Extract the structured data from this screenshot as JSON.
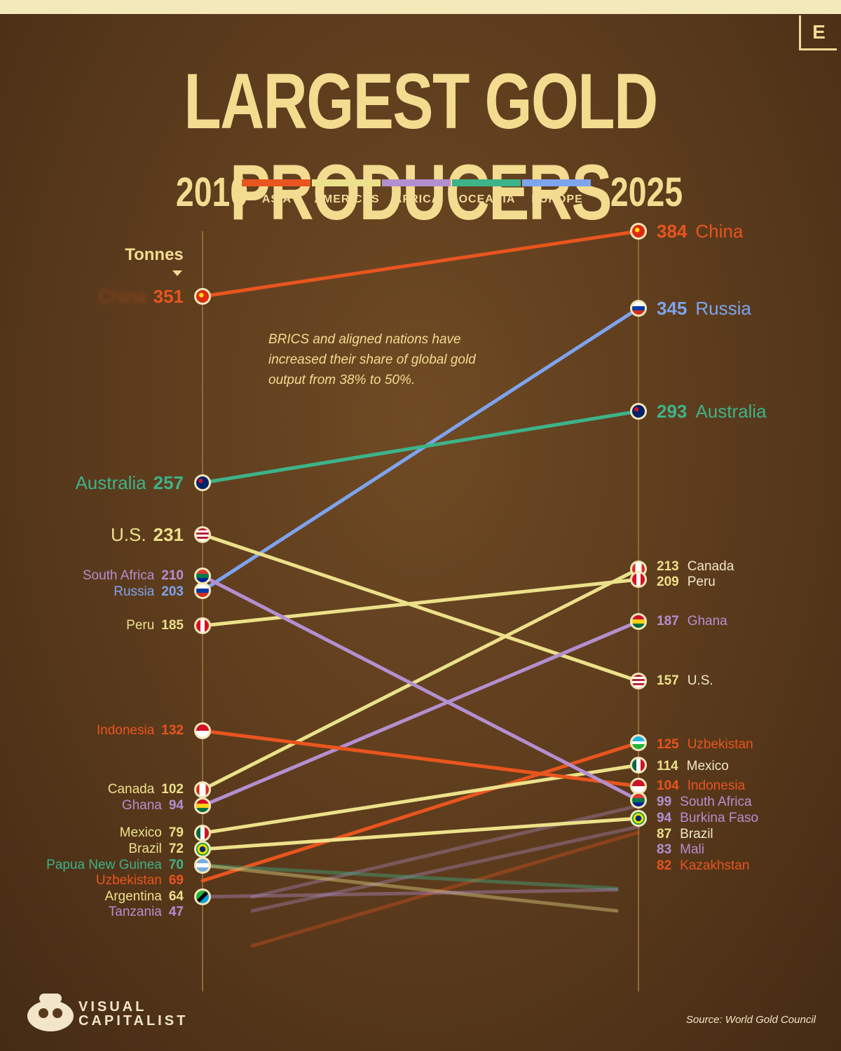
{
  "brand_letter": "E",
  "title": "LARGEST GOLD PRODUCERS",
  "year_left": "2010",
  "year_right": "2025",
  "unit_label": "Tonnes",
  "note": "BRICS and aligned nations have increased their share of global gold output from 38% to 50%.",
  "source": "Source: World Gold Council",
  "footer_brand_line1": "VISUAL",
  "footer_brand_line2": "CAPITALIST",
  "legend": [
    {
      "name": "ASIA",
      "color": "#e9551e"
    },
    {
      "name": "AMERICAS",
      "color": "#ece18a"
    },
    {
      "name": "AFRICA",
      "color": "#b48fd0"
    },
    {
      "name": "OCEANIA",
      "color": "#3db389"
    },
    {
      "name": "EUROPE",
      "color": "#7ea4ee"
    }
  ],
  "chart_data": {
    "type": "slope",
    "x": [
      "2010",
      "2025"
    ],
    "ylabel": "Tonnes",
    "series": [
      {
        "name": "China",
        "region": "ASIA",
        "v2010": 351,
        "v2025": 384,
        "flag": "china"
      },
      {
        "name": "Russia",
        "region": "EUROPE",
        "v2010": 203,
        "v2025": 345,
        "flag": "russia"
      },
      {
        "name": "Australia",
        "region": "OCEANIA",
        "v2010": 257,
        "v2025": 293,
        "flag": "australia"
      },
      {
        "name": "U.S.",
        "region": "AMERICAS",
        "v2010": 231,
        "v2025": 157,
        "flag": "usa"
      },
      {
        "name": "Canada",
        "region": "AMERICAS",
        "v2010": 102,
        "v2025": 213,
        "flag": "canada"
      },
      {
        "name": "Peru",
        "region": "AMERICAS",
        "v2010": 185,
        "v2025": 209,
        "flag": "peru"
      },
      {
        "name": "Ghana",
        "region": "AFRICA",
        "v2010": 94,
        "v2025": 187,
        "flag": "ghana"
      },
      {
        "name": "Uzbekistan",
        "region": "ASIA",
        "v2010": 69,
        "v2025": 125,
        "flag": "uzbekistan"
      },
      {
        "name": "Mexico",
        "region": "AMERICAS",
        "v2010": 79,
        "v2025": 114,
        "flag": "mexico"
      },
      {
        "name": "Indonesia",
        "region": "ASIA",
        "v2010": 132,
        "v2025": 104,
        "flag": "indonesia"
      },
      {
        "name": "South Africa",
        "region": "AFRICA",
        "v2010": 210,
        "v2025": 99,
        "flag": "southafrica"
      },
      {
        "name": "Burkina Faso",
        "region": "AFRICA",
        "v2010": null,
        "v2025": 94,
        "flag": null
      },
      {
        "name": "Brazil",
        "region": "AMERICAS",
        "v2010": 72,
        "v2025": 87,
        "flag": "brazil"
      },
      {
        "name": "Mali",
        "region": "AFRICA",
        "v2010": null,
        "v2025": 83,
        "flag": null
      },
      {
        "name": "Kazakhstan",
        "region": "ASIA",
        "v2010": null,
        "v2025": 82,
        "flag": null
      },
      {
        "name": "Papua New Guinea",
        "region": "OCEANIA",
        "v2010": 70,
        "v2025": null,
        "flag": "png"
      },
      {
        "name": "Argentina",
        "region": "AMERICAS",
        "v2010": 64,
        "v2025": null,
        "flag": "argentina"
      },
      {
        "name": "Tanzania",
        "region": "AFRICA",
        "v2010": 47,
        "v2025": null,
        "flag": "tanzania"
      }
    ],
    "left_labels": [
      {
        "country": "China",
        "value": "351",
        "region": "ASIA",
        "name_hidden": true,
        "big": true
      },
      {
        "country": "Australia",
        "value": "257",
        "region": "OCEANIA",
        "big": true
      },
      {
        "country": "U.S.",
        "value": "231",
        "region": "AMERICAS",
        "big": true
      },
      {
        "country": "South Africa",
        "value": "210",
        "region": "AFRICA"
      },
      {
        "country": "Russia",
        "value": "203",
        "region": "EUROPE"
      },
      {
        "country": "Peru",
        "value": "185",
        "region": "AMERICAS"
      },
      {
        "country": "Indonesia",
        "value": "132",
        "region": "ASIA"
      },
      {
        "country": "Canada",
        "value": "102",
        "region": "AMERICAS"
      },
      {
        "country": "Ghana",
        "value": "94",
        "region": "AFRICA"
      },
      {
        "country": "Mexico",
        "value": "79",
        "region": "AMERICAS"
      },
      {
        "country": "Brazil",
        "value": "72",
        "region": "AMERICAS"
      },
      {
        "country": "Papua New Guinea",
        "value": "70",
        "region": "OCEANIA"
      },
      {
        "country": "Uzbekistan",
        "value": "69",
        "region": "ASIA"
      },
      {
        "country": "Argentina",
        "value": "64",
        "region": "AMERICAS"
      },
      {
        "country": "Tanzania",
        "value": "47",
        "region": "AFRICA"
      }
    ],
    "right_labels": [
      {
        "country": "China",
        "value": "384",
        "region": "ASIA",
        "big": true
      },
      {
        "country": "Russia",
        "value": "345",
        "region": "EUROPE",
        "big": true
      },
      {
        "country": "Australia",
        "value": "293",
        "region": "OCEANIA",
        "big": true
      },
      {
        "country": "Canada",
        "value": "213",
        "region": "AMERICAS"
      },
      {
        "country": "Peru",
        "value": "209",
        "region": "AMERICAS"
      },
      {
        "country": "Ghana",
        "value": "187",
        "region": "AFRICA"
      },
      {
        "country": "U.S.",
        "value": "157",
        "region": "AMERICAS"
      },
      {
        "country": "Uzbekistan",
        "value": "125",
        "region": "ASIA"
      },
      {
        "country": "Mexico",
        "value": "114",
        "region": "AMERICAS"
      },
      {
        "country": "Indonesia",
        "value": "104",
        "region": "ASIA"
      },
      {
        "country": "South Africa",
        "value": "99",
        "region": "AFRICA"
      },
      {
        "country": "Burkina Faso",
        "value": "94",
        "region": "AFRICA"
      },
      {
        "country": "Brazil",
        "value": "87",
        "region": "AMERICAS"
      },
      {
        "country": "Mali",
        "value": "83",
        "region": "AFRICA"
      },
      {
        "country": "Kazakhstan",
        "value": "82",
        "region": "ASIA"
      }
    ]
  }
}
